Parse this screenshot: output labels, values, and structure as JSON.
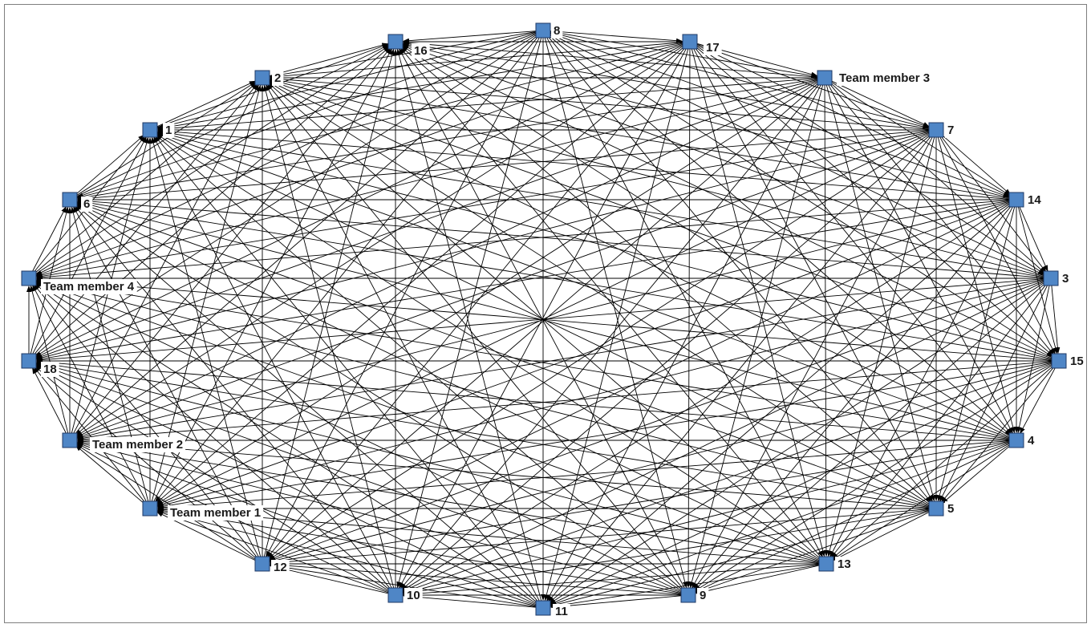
{
  "diagram": {
    "type": "directed-network",
    "node_color": "#4f86c6",
    "node_border": "#1f3864",
    "edge_color": "#000000",
    "nodes": [
      {
        "id": "8",
        "label": "8"
      },
      {
        "id": "17",
        "label": "17"
      },
      {
        "id": "TM3",
        "label": "Team member 3"
      },
      {
        "id": "7",
        "label": "7"
      },
      {
        "id": "14",
        "label": "14"
      },
      {
        "id": "3",
        "label": "3"
      },
      {
        "id": "15",
        "label": "15"
      },
      {
        "id": "4",
        "label": "4"
      },
      {
        "id": "5",
        "label": "5"
      },
      {
        "id": "13",
        "label": "13"
      },
      {
        "id": "9",
        "label": "9"
      },
      {
        "id": "11",
        "label": "11"
      },
      {
        "id": "10",
        "label": "10"
      },
      {
        "id": "12",
        "label": "12"
      },
      {
        "id": "TM1",
        "label": "Team member 1"
      },
      {
        "id": "TM2",
        "label": "Team member 2"
      },
      {
        "id": "18",
        "label": "18"
      },
      {
        "id": "TM4",
        "label": "Team member 4"
      },
      {
        "id": "6",
        "label": "6"
      },
      {
        "id": "1",
        "label": "1"
      },
      {
        "id": "2",
        "label": "2"
      },
      {
        "id": "16",
        "label": "16"
      }
    ],
    "edges": "all pairs (complete directed graph)"
  }
}
